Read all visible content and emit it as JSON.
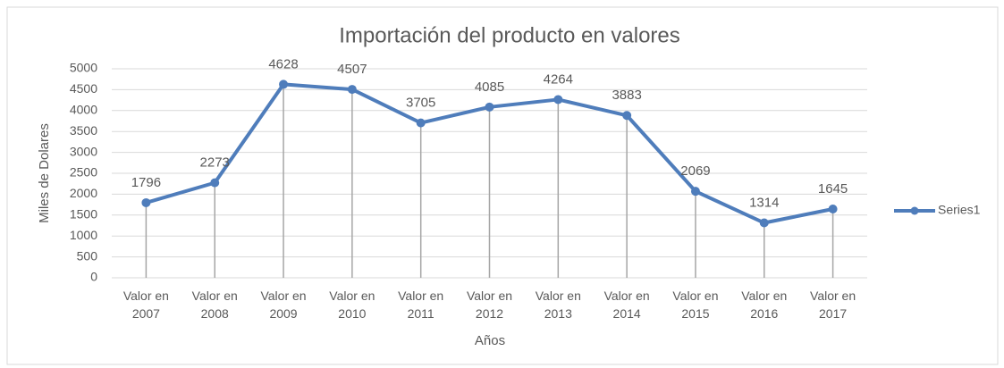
{
  "chart_data": {
    "type": "line",
    "title": "Importación del producto en valores",
    "x_label": "Años",
    "y_label": "Miles de Dolares",
    "categories": [
      "Valor en 2007",
      "Valor en 2008",
      "Valor en 2009",
      "Valor en 2010",
      "Valor en 2011",
      "Valor en 2012",
      "Valor en 2013",
      "Valor en 2014",
      "Valor en 2015",
      "Valor en 2016",
      "Valor en 2017"
    ],
    "series": [
      {
        "name": "Series1",
        "color": "#4f7dbb",
        "values": [
          1796,
          2273,
          4628,
          4507,
          3705,
          4085,
          4264,
          3883,
          2069,
          1314,
          1645
        ]
      }
    ],
    "ylim": [
      0,
      5000
    ],
    "yticks": [
      0,
      500,
      1000,
      1500,
      2000,
      2500,
      3000,
      3500,
      4000,
      4500,
      5000
    ],
    "grid": true,
    "drop_lines": true,
    "legend": "right"
  }
}
